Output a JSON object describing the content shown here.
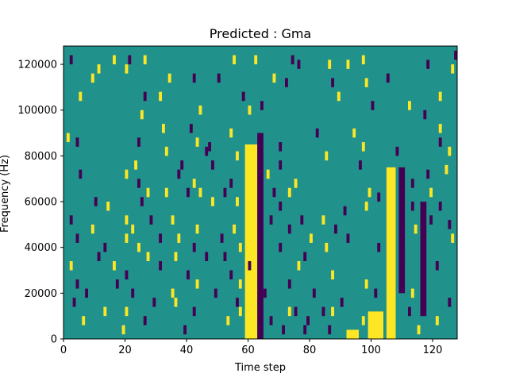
{
  "chart_data": {
    "type": "heatmap",
    "title": "Predicted : Gma",
    "xlabel": "Time step",
    "ylabel": "Frequency (Hz)",
    "xlim": [
      0,
      128
    ],
    "ylim": [
      0,
      128000
    ],
    "x_ticks": [
      0,
      20,
      40,
      60,
      80,
      100,
      120
    ],
    "y_ticks": [
      0,
      20000,
      40000,
      60000,
      80000,
      100000,
      120000
    ],
    "grid": false,
    "colormap": "viridis",
    "colors": {
      "background": "#21918c",
      "high": "#fde725",
      "low": "#440154"
    },
    "bands": [
      {
        "x": [
          59,
          63
        ],
        "y": [
          0,
          85000
        ],
        "level": "high"
      },
      {
        "x": [
          105,
          108
        ],
        "y": [
          0,
          75000
        ],
        "level": "high"
      },
      {
        "x": [
          99,
          104
        ],
        "y": [
          0,
          12000
        ],
        "level": "high"
      },
      {
        "x": [
          63,
          65
        ],
        "y": [
          0,
          90000
        ],
        "level": "low"
      },
      {
        "x": [
          109,
          111
        ],
        "y": [
          20000,
          75000
        ],
        "level": "low"
      },
      {
        "x": [
          116,
          118
        ],
        "y": [
          10000,
          60000
        ],
        "level": "low"
      },
      {
        "x": [
          92,
          96
        ],
        "y": [
          0,
          4000
        ],
        "level": "high"
      }
    ],
    "cells": [
      {
        "x": 2,
        "y": 122000,
        "level": "low"
      },
      {
        "x": 16,
        "y": 122000,
        "level": "high"
      },
      {
        "x": 21,
        "y": 122000,
        "level": "low"
      },
      {
        "x": 26,
        "y": 122000,
        "level": "high"
      },
      {
        "x": 55,
        "y": 122000,
        "level": "high"
      },
      {
        "x": 62,
        "y": 122000,
        "level": "high"
      },
      {
        "x": 74,
        "y": 122000,
        "level": "low"
      },
      {
        "x": 97,
        "y": 122000,
        "level": "high"
      },
      {
        "x": 127,
        "y": 124000,
        "level": "low"
      },
      {
        "x": 11,
        "y": 118000,
        "level": "high"
      },
      {
        "x": 20,
        "y": 118000,
        "level": "high"
      },
      {
        "x": 76,
        "y": 120000,
        "level": "low"
      },
      {
        "x": 86,
        "y": 120000,
        "level": "high"
      },
      {
        "x": 92,
        "y": 120000,
        "level": "high"
      },
      {
        "x": 118,
        "y": 120000,
        "level": "low"
      },
      {
        "x": 126,
        "y": 118000,
        "level": "high"
      },
      {
        "x": 9,
        "y": 114000,
        "level": "high"
      },
      {
        "x": 34,
        "y": 114000,
        "level": "high"
      },
      {
        "x": 42,
        "y": 114000,
        "level": "low"
      },
      {
        "x": 50,
        "y": 114000,
        "level": "low"
      },
      {
        "x": 68,
        "y": 114000,
        "level": "high"
      },
      {
        "x": 72,
        "y": 112000,
        "level": "low"
      },
      {
        "x": 87,
        "y": 112000,
        "level": "low"
      },
      {
        "x": 98,
        "y": 112000,
        "level": "high"
      },
      {
        "x": 105,
        "y": 114000,
        "level": "low"
      },
      {
        "x": 5,
        "y": 106000,
        "level": "high"
      },
      {
        "x": 26,
        "y": 106000,
        "level": "low"
      },
      {
        "x": 31,
        "y": 106000,
        "level": "high"
      },
      {
        "x": 58,
        "y": 106000,
        "level": "low"
      },
      {
        "x": 89,
        "y": 106000,
        "level": "high"
      },
      {
        "x": 122,
        "y": 106000,
        "level": "high"
      },
      {
        "x": 44,
        "y": 100000,
        "level": "high"
      },
      {
        "x": 60,
        "y": 100000,
        "level": "high"
      },
      {
        "x": 64,
        "y": 102000,
        "level": "low"
      },
      {
        "x": 100,
        "y": 102000,
        "level": "low"
      },
      {
        "x": 112,
        "y": 102000,
        "level": "high"
      },
      {
        "x": 25,
        "y": 98000,
        "level": "high"
      },
      {
        "x": 117,
        "y": 98000,
        "level": "low"
      },
      {
        "x": 32,
        "y": 92000,
        "level": "high"
      },
      {
        "x": 41,
        "y": 92000,
        "level": "low"
      },
      {
        "x": 54,
        "y": 90000,
        "level": "high"
      },
      {
        "x": 82,
        "y": 90000,
        "level": "low"
      },
      {
        "x": 94,
        "y": 90000,
        "level": "high"
      },
      {
        "x": 1,
        "y": 88000,
        "level": "high"
      },
      {
        "x": 122,
        "y": 92000,
        "level": "high"
      },
      {
        "x": 4,
        "y": 86000,
        "level": "low"
      },
      {
        "x": 24,
        "y": 86000,
        "level": "low"
      },
      {
        "x": 43,
        "y": 86000,
        "level": "high"
      },
      {
        "x": 47,
        "y": 84000,
        "level": "low"
      },
      {
        "x": 70,
        "y": 84000,
        "level": "low"
      },
      {
        "x": 97,
        "y": 84000,
        "level": "high"
      },
      {
        "x": 122,
        "y": 86000,
        "level": "low"
      },
      {
        "x": 33,
        "y": 82000,
        "level": "high"
      },
      {
        "x": 46,
        "y": 82000,
        "level": "low"
      },
      {
        "x": 56,
        "y": 80000,
        "level": "high"
      },
      {
        "x": 85,
        "y": 80000,
        "level": "high"
      },
      {
        "x": 108,
        "y": 82000,
        "level": "low"
      },
      {
        "x": 125,
        "y": 82000,
        "level": "high"
      },
      {
        "x": 23,
        "y": 76000,
        "level": "high"
      },
      {
        "x": 38,
        "y": 76000,
        "level": "low"
      },
      {
        "x": 48,
        "y": 76000,
        "level": "low"
      },
      {
        "x": 70,
        "y": 76000,
        "level": "low"
      },
      {
        "x": 96,
        "y": 76000,
        "level": "low"
      },
      {
        "x": 124,
        "y": 74000,
        "level": "high"
      },
      {
        "x": 5,
        "y": 72000,
        "level": "low"
      },
      {
        "x": 20,
        "y": 72000,
        "level": "high"
      },
      {
        "x": 37,
        "y": 72000,
        "level": "low"
      },
      {
        "x": 66,
        "y": 72000,
        "level": "high"
      },
      {
        "x": 118,
        "y": 72000,
        "level": "low"
      },
      {
        "x": 24,
        "y": 68000,
        "level": "low"
      },
      {
        "x": 42,
        "y": 68000,
        "level": "high"
      },
      {
        "x": 54,
        "y": 68000,
        "level": "low"
      },
      {
        "x": 75,
        "y": 68000,
        "level": "high"
      },
      {
        "x": 113,
        "y": 68000,
        "level": "low"
      },
      {
        "x": 27,
        "y": 64000,
        "level": "high"
      },
      {
        "x": 33,
        "y": 64000,
        "level": "high"
      },
      {
        "x": 40,
        "y": 64000,
        "level": "low"
      },
      {
        "x": 44,
        "y": 64000,
        "level": "high"
      },
      {
        "x": 52,
        "y": 64000,
        "level": "low"
      },
      {
        "x": 68,
        "y": 64000,
        "level": "low"
      },
      {
        "x": 73,
        "y": 64000,
        "level": "high"
      },
      {
        "x": 99,
        "y": 64000,
        "level": "high"
      },
      {
        "x": 102,
        "y": 62000,
        "level": "low"
      },
      {
        "x": 119,
        "y": 64000,
        "level": "high"
      },
      {
        "x": 10,
        "y": 60000,
        "level": "low"
      },
      {
        "x": 14,
        "y": 58000,
        "level": "high"
      },
      {
        "x": 25,
        "y": 60000,
        "level": "low"
      },
      {
        "x": 48,
        "y": 60000,
        "level": "high"
      },
      {
        "x": 56,
        "y": 60000,
        "level": "high"
      },
      {
        "x": 70,
        "y": 58000,
        "level": "low"
      },
      {
        "x": 91,
        "y": 56000,
        "level": "low"
      },
      {
        "x": 98,
        "y": 58000,
        "level": "high"
      },
      {
        "x": 113,
        "y": 58000,
        "level": "low"
      },
      {
        "x": 122,
        "y": 58000,
        "level": "low"
      },
      {
        "x": 2,
        "y": 52000,
        "level": "low"
      },
      {
        "x": 20,
        "y": 52000,
        "level": "high"
      },
      {
        "x": 28,
        "y": 52000,
        "level": "low"
      },
      {
        "x": 35,
        "y": 52000,
        "level": "high"
      },
      {
        "x": 67,
        "y": 52000,
        "level": "low"
      },
      {
        "x": 77,
        "y": 52000,
        "level": "low"
      },
      {
        "x": 84,
        "y": 52000,
        "level": "high"
      },
      {
        "x": 119,
        "y": 52000,
        "level": "low"
      },
      {
        "x": 125,
        "y": 50000,
        "level": "low"
      },
      {
        "x": 9,
        "y": 48000,
        "level": "high"
      },
      {
        "x": 22,
        "y": 48000,
        "level": "high"
      },
      {
        "x": 43,
        "y": 48000,
        "level": "high"
      },
      {
        "x": 55,
        "y": 48000,
        "level": "high"
      },
      {
        "x": 73,
        "y": 48000,
        "level": "low"
      },
      {
        "x": 88,
        "y": 48000,
        "level": "low"
      },
      {
        "x": 114,
        "y": 48000,
        "level": "high"
      },
      {
        "x": 4,
        "y": 44000,
        "level": "low"
      },
      {
        "x": 20,
        "y": 44000,
        "level": "high"
      },
      {
        "x": 31,
        "y": 44000,
        "level": "low"
      },
      {
        "x": 37,
        "y": 44000,
        "level": "high"
      },
      {
        "x": 51,
        "y": 44000,
        "level": "low"
      },
      {
        "x": 80,
        "y": 44000,
        "level": "high"
      },
      {
        "x": 92,
        "y": 44000,
        "level": "low"
      },
      {
        "x": 126,
        "y": 44000,
        "level": "high"
      },
      {
        "x": 13,
        "y": 40000,
        "level": "low"
      },
      {
        "x": 24,
        "y": 40000,
        "level": "high"
      },
      {
        "x": 42,
        "y": 40000,
        "level": "low"
      },
      {
        "x": 57,
        "y": 40000,
        "level": "high"
      },
      {
        "x": 70,
        "y": 40000,
        "level": "low"
      },
      {
        "x": 85,
        "y": 40000,
        "level": "high"
      },
      {
        "x": 102,
        "y": 40000,
        "level": "low"
      },
      {
        "x": 11,
        "y": 36000,
        "level": "low"
      },
      {
        "x": 27,
        "y": 36000,
        "level": "high"
      },
      {
        "x": 36,
        "y": 36000,
        "level": "high"
      },
      {
        "x": 46,
        "y": 36000,
        "level": "low"
      },
      {
        "x": 52,
        "y": 36000,
        "level": "low"
      },
      {
        "x": 78,
        "y": 36000,
        "level": "low"
      },
      {
        "x": 110,
        "y": 36000,
        "level": "low"
      },
      {
        "x": 2,
        "y": 32000,
        "level": "high"
      },
      {
        "x": 16,
        "y": 32000,
        "level": "high"
      },
      {
        "x": 31,
        "y": 32000,
        "level": "low"
      },
      {
        "x": 60,
        "y": 32000,
        "level": "low"
      },
      {
        "x": 76,
        "y": 32000,
        "level": "high"
      },
      {
        "x": 121,
        "y": 32000,
        "level": "low"
      },
      {
        "x": 20,
        "y": 28000,
        "level": "low"
      },
      {
        "x": 40,
        "y": 28000,
        "level": "low"
      },
      {
        "x": 54,
        "y": 28000,
        "level": "low"
      },
      {
        "x": 87,
        "y": 28000,
        "level": "high"
      },
      {
        "x": 4,
        "y": 24000,
        "level": "low"
      },
      {
        "x": 17,
        "y": 24000,
        "level": "low"
      },
      {
        "x": 43,
        "y": 24000,
        "level": "high"
      },
      {
        "x": 57,
        "y": 24000,
        "level": "high"
      },
      {
        "x": 73,
        "y": 24000,
        "level": "low"
      },
      {
        "x": 98,
        "y": 24000,
        "level": "high"
      },
      {
        "x": 7,
        "y": 20000,
        "level": "low"
      },
      {
        "x": 22,
        "y": 20000,
        "level": "low"
      },
      {
        "x": 35,
        "y": 20000,
        "level": "high"
      },
      {
        "x": 49,
        "y": 20000,
        "level": "low"
      },
      {
        "x": 65,
        "y": 20000,
        "level": "low"
      },
      {
        "x": 81,
        "y": 20000,
        "level": "low"
      },
      {
        "x": 101,
        "y": 20000,
        "level": "low"
      },
      {
        "x": 113,
        "y": 20000,
        "level": "high"
      },
      {
        "x": 3,
        "y": 16000,
        "level": "low"
      },
      {
        "x": 29,
        "y": 16000,
        "level": "low"
      },
      {
        "x": 36,
        "y": 16000,
        "level": "high"
      },
      {
        "x": 56,
        "y": 16000,
        "level": "low"
      },
      {
        "x": 90,
        "y": 16000,
        "level": "low"
      },
      {
        "x": 125,
        "y": 16000,
        "level": "low"
      },
      {
        "x": 13,
        "y": 12000,
        "level": "high"
      },
      {
        "x": 20,
        "y": 12000,
        "level": "high"
      },
      {
        "x": 42,
        "y": 12000,
        "level": "low"
      },
      {
        "x": 57,
        "y": 12000,
        "level": "high"
      },
      {
        "x": 73,
        "y": 12000,
        "level": "high"
      },
      {
        "x": 75,
        "y": 12000,
        "level": "low"
      },
      {
        "x": 84,
        "y": 12000,
        "level": "low"
      },
      {
        "x": 87,
        "y": 12000,
        "level": "high"
      },
      {
        "x": 112,
        "y": 12000,
        "level": "low"
      },
      {
        "x": 6,
        "y": 8000,
        "level": "high"
      },
      {
        "x": 26,
        "y": 8000,
        "level": "low"
      },
      {
        "x": 53,
        "y": 8000,
        "level": "high"
      },
      {
        "x": 67,
        "y": 8000,
        "level": "low"
      },
      {
        "x": 79,
        "y": 8000,
        "level": "low"
      },
      {
        "x": 97,
        "y": 8000,
        "level": "high"
      },
      {
        "x": 121,
        "y": 8000,
        "level": "high"
      },
      {
        "x": 19,
        "y": 4000,
        "level": "high"
      },
      {
        "x": 39,
        "y": 4000,
        "level": "low"
      },
      {
        "x": 71,
        "y": 4000,
        "level": "low"
      },
      {
        "x": 78,
        "y": 4000,
        "level": "low"
      },
      {
        "x": 86,
        "y": 4000,
        "level": "low"
      },
      {
        "x": 115,
        "y": 4000,
        "level": "high"
      }
    ]
  }
}
